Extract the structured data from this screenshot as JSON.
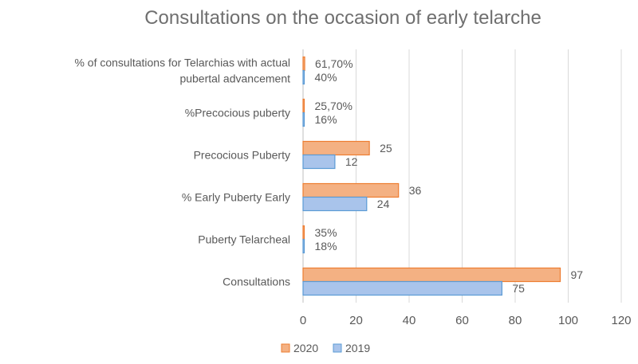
{
  "chart_data": {
    "type": "bar",
    "orientation": "horizontal",
    "title": "Consultations on the occasion of early telarche",
    "categories": [
      "Consultations",
      "Puberty Telarcheal",
      "% Early Puberty Early",
      "Precocious Puberty",
      "%Precocious puberty",
      [
        "% of consultations for Telarchias with actual",
        "pubertal advancement"
      ]
    ],
    "series": [
      {
        "name": "2020",
        "color": "#f4b183",
        "stroke": "#ed7d31",
        "values": [
          97,
          0.35,
          36,
          25,
          0.257,
          0.617
        ],
        "labels": [
          "97",
          "35%",
          "36",
          "25",
          "25,70%",
          "61,70%"
        ]
      },
      {
        "name": "2019",
        "color": "#a9c4eb",
        "stroke": "#5b9bd5",
        "values": [
          75,
          0.18,
          24,
          12,
          0.16,
          0.4
        ],
        "labels": [
          "75",
          "18%",
          "24",
          "12",
          "16%",
          "40%"
        ]
      }
    ],
    "xlim": [
      0,
      120
    ],
    "xticks": [
      "0",
      "20",
      "40",
      "60",
      "80",
      "100",
      "120"
    ],
    "grid": true,
    "legend": "bottom",
    "xlabel": "",
    "ylabel": ""
  }
}
